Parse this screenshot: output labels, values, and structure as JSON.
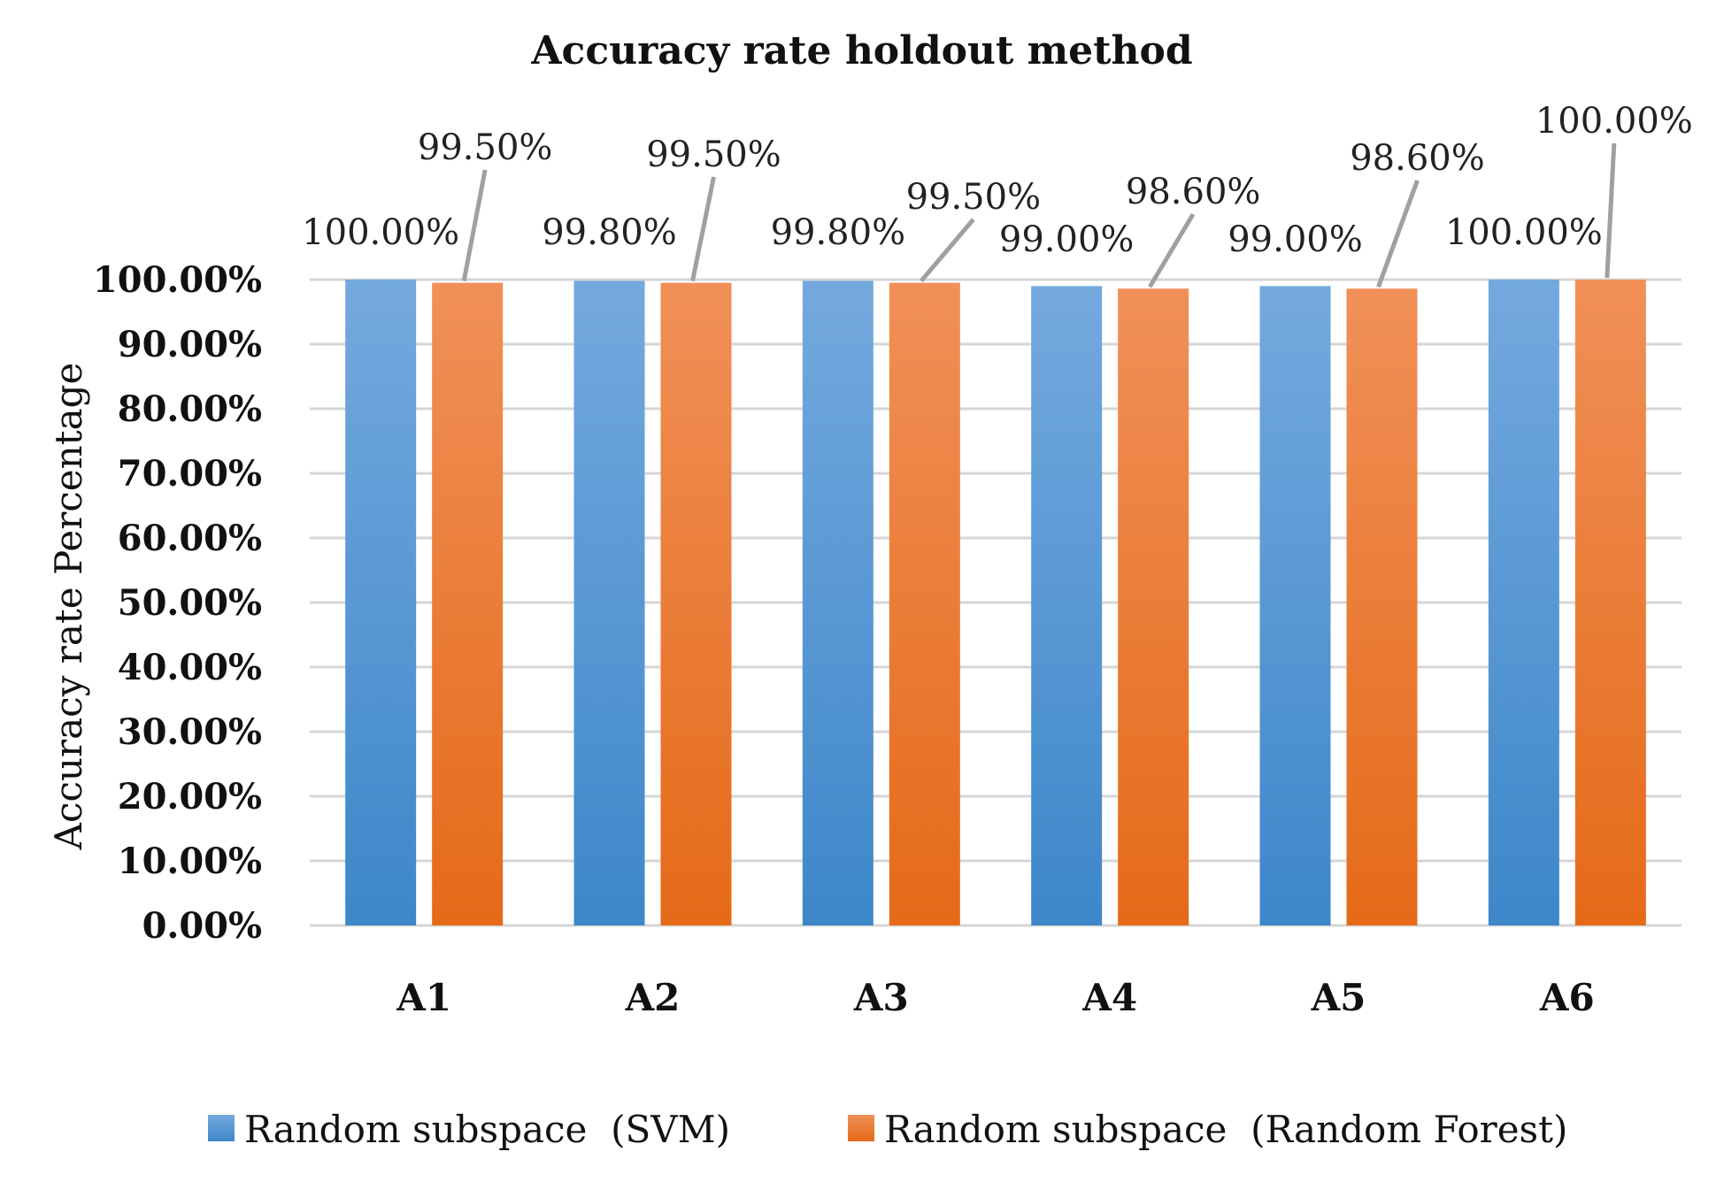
{
  "chart_data": {
    "type": "bar",
    "title": "Accuracy rate holdout method",
    "xlabel": "",
    "ylabel": "Accuracy rate Percentage",
    "categories": [
      "A1",
      "A2",
      "A3",
      "A4",
      "A5",
      "A6"
    ],
    "ylim": [
      0,
      100
    ],
    "yticks": [
      "0.00%",
      "10.00%",
      "20.00%",
      "30.00%",
      "40.00%",
      "50.00%",
      "60.00%",
      "70.00%",
      "80.00%",
      "90.00%",
      "100.00%"
    ],
    "grid": true,
    "legend_position": "bottom",
    "series": [
      {
        "name": "Random subspace  (SVM)",
        "color": "#5b9bd5",
        "values": [
          100.0,
          99.8,
          99.8,
          99.0,
          99.0,
          100.0
        ],
        "labels": [
          "100.00%",
          "99.80%",
          "99.80%",
          "99.00%",
          "99.00%",
          "100.00%"
        ]
      },
      {
        "name": "Random subspace  (Random Forest)",
        "color": "#ed7d31",
        "values": [
          99.5,
          99.5,
          99.5,
          98.6,
          98.6,
          100.0
        ],
        "labels": [
          "99.50%",
          "99.50%",
          "99.50%",
          "98.60%",
          "98.60%",
          "100.00%"
        ]
      }
    ]
  }
}
